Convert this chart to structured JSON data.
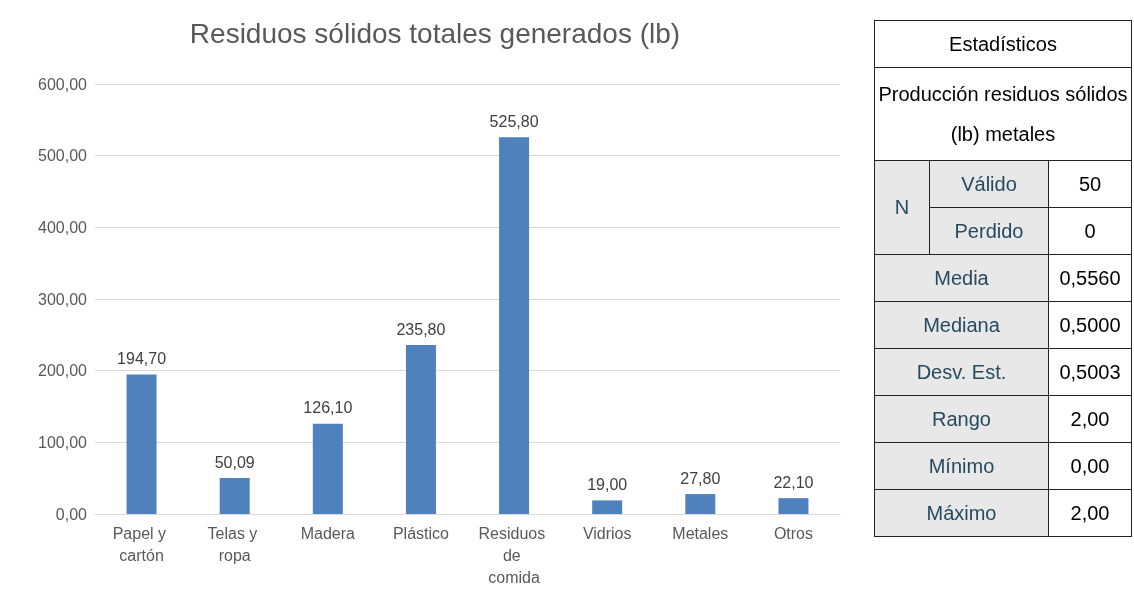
{
  "chart_data": [
    {
      "type": "bar",
      "title": "Residuos sólidos totales generados (lb)",
      "categories": [
        "Papel y cartón",
        "Telas y ropa",
        "Madera",
        "Plástico",
        "Residuos de comida",
        "Vidrios",
        "Metales",
        "Otros"
      ],
      "values": [
        194.7,
        50.09,
        126.1,
        235.8,
        525.8,
        19,
        27.8,
        22.1
      ],
      "value_labels": [
        "194,70",
        "50,09",
        "126,10",
        "235,80",
        "525,80",
        "19,00",
        "27,80",
        "22,10"
      ],
      "color": "#4f81bd",
      "ylim": [
        0,
        600
      ],
      "yticks": [
        {
          "value": 0,
          "label": "0,00"
        },
        {
          "value": 100,
          "label": "100,00"
        },
        {
          "value": 200,
          "label": "200,00"
        },
        {
          "value": 300,
          "label": "300,00"
        },
        {
          "value": 400,
          "label": "400,00"
        },
        {
          "value": 500,
          "label": "500,00"
        },
        {
          "value": 600,
          "label": "600,00"
        }
      ],
      "grid": "y"
    },
    {
      "type": "other",
      "annotations": [
        "Estadísticos",
        "Producción residuos sólidos (lb) metales",
        "N",
        "Válido",
        "50",
        "Perdido",
        "0",
        "Media",
        "0,5560",
        "Mediana",
        "0,5000",
        "Desv. Est.",
        "0,5003",
        "Rango",
        "2,00",
        "Mínimo",
        "0,00",
        "Máximo",
        "2,00"
      ]
    }
  ]
}
